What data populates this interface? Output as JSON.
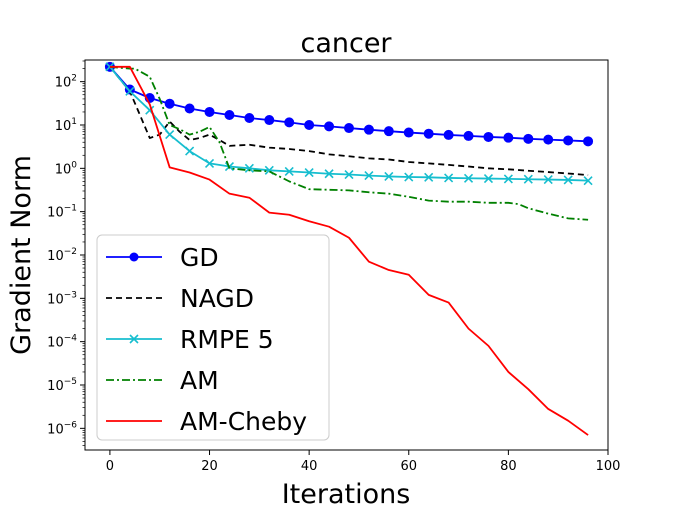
{
  "chart_data": {
    "type": "line",
    "title": "cancer",
    "xlabel": "Iterations",
    "ylabel": "Gradient Norm",
    "xlim": [
      -5,
      100
    ],
    "ylim_log10": [
      -6.5,
      2.5
    ],
    "yscale": "log",
    "x_ticks": [
      0,
      20,
      40,
      60,
      80,
      100
    ],
    "x_tick_labels": [
      "0",
      "20",
      "40",
      "60",
      "80",
      "100"
    ],
    "y_ticks_log10": [
      -6,
      -5,
      -4,
      -3,
      -2,
      -1,
      0,
      1,
      2
    ],
    "y_tick_labels": [
      {
        "base": "10",
        "exp": "−6"
      },
      {
        "base": "10",
        "exp": "−5"
      },
      {
        "base": "10",
        "exp": "−4"
      },
      {
        "base": "10",
        "exp": "−3"
      },
      {
        "base": "10",
        "exp": "−2"
      },
      {
        "base": "10",
        "exp": "−1"
      },
      {
        "base": "10",
        "exp": "0"
      },
      {
        "base": "10",
        "exp": "1"
      },
      {
        "base": "10",
        "exp": "2"
      }
    ],
    "grid": false,
    "legend_position": "lower-left",
    "series": [
      {
        "name": "GD",
        "color": "#0000ff",
        "dash": "solid",
        "marker": "circle",
        "x": [
          0,
          4,
          8,
          12,
          16,
          20,
          24,
          28,
          32,
          36,
          40,
          44,
          48,
          52,
          56,
          60,
          64,
          68,
          72,
          76,
          80,
          84,
          88,
          92,
          96
        ],
        "y": [
          220,
          66,
          42,
          31,
          24,
          20,
          17,
          14.5,
          13,
          11.5,
          10,
          9.3,
          8.5,
          7.8,
          7.2,
          6.7,
          6.3,
          5.9,
          5.6,
          5.3,
          5.1,
          4.8,
          4.6,
          4.4,
          4.2
        ]
      },
      {
        "name": "NAGD",
        "color": "#000000",
        "dash": "dashed",
        "marker": "none",
        "x": [
          0,
          4,
          8,
          10,
          12,
          14,
          16,
          18,
          20,
          22,
          24,
          28,
          32,
          36,
          40,
          44,
          48,
          52,
          56,
          60,
          64,
          68,
          72,
          76,
          80,
          84,
          88,
          92,
          96
        ],
        "y": [
          220,
          60,
          5,
          6,
          12,
          7,
          4.5,
          5,
          6,
          4.5,
          3.3,
          3.5,
          3.0,
          2.8,
          2.5,
          2.1,
          1.9,
          1.7,
          1.6,
          1.4,
          1.3,
          1.2,
          1.1,
          1.0,
          0.95,
          0.88,
          0.82,
          0.76,
          0.7
        ]
      },
      {
        "name": "RMPE 5",
        "color": "#17becf",
        "dash": "solid",
        "marker": "x",
        "x": [
          0,
          4,
          8,
          12,
          16,
          20,
          24,
          28,
          32,
          36,
          40,
          44,
          48,
          52,
          56,
          60,
          64,
          68,
          72,
          76,
          80,
          84,
          88,
          92,
          96
        ],
        "y": [
          220,
          60,
          22,
          6,
          2.5,
          1.3,
          1.1,
          1.0,
          0.9,
          0.85,
          0.8,
          0.75,
          0.72,
          0.68,
          0.65,
          0.63,
          0.62,
          0.6,
          0.59,
          0.58,
          0.57,
          0.56,
          0.55,
          0.54,
          0.52
        ]
      },
      {
        "name": "AM",
        "color": "#008000",
        "dash": "dashdot",
        "marker": "none",
        "x": [
          0,
          4,
          5,
          8,
          10,
          12,
          14,
          16,
          18,
          20,
          22,
          24,
          28,
          32,
          36,
          40,
          44,
          48,
          52,
          56,
          60,
          64,
          68,
          72,
          76,
          80,
          82,
          84,
          88,
          92,
          96
        ],
        "y": [
          220,
          200,
          200,
          130,
          40,
          10,
          8,
          6,
          7,
          9,
          4,
          1.0,
          0.9,
          0.85,
          0.5,
          0.33,
          0.32,
          0.31,
          0.28,
          0.26,
          0.22,
          0.18,
          0.17,
          0.17,
          0.16,
          0.16,
          0.15,
          0.12,
          0.09,
          0.07,
          0.065
        ]
      },
      {
        "name": "AM-Cheby",
        "color": "#ff0000",
        "dash": "solid",
        "marker": "none",
        "x": [
          0,
          4,
          8,
          12,
          16,
          20,
          24,
          28,
          32,
          36,
          40,
          44,
          48,
          52,
          56,
          60,
          64,
          68,
          72,
          76,
          80,
          84,
          88,
          92,
          96
        ],
        "y": [
          220,
          220,
          30,
          1.05,
          0.8,
          0.55,
          0.26,
          0.21,
          0.095,
          0.085,
          0.06,
          0.045,
          0.025,
          0.007,
          0.0045,
          0.0035,
          0.0012,
          0.0008,
          0.0002,
          8e-05,
          2e-05,
          8e-06,
          2.8e-06,
          1.5e-06,
          7e-07
        ]
      }
    ]
  }
}
